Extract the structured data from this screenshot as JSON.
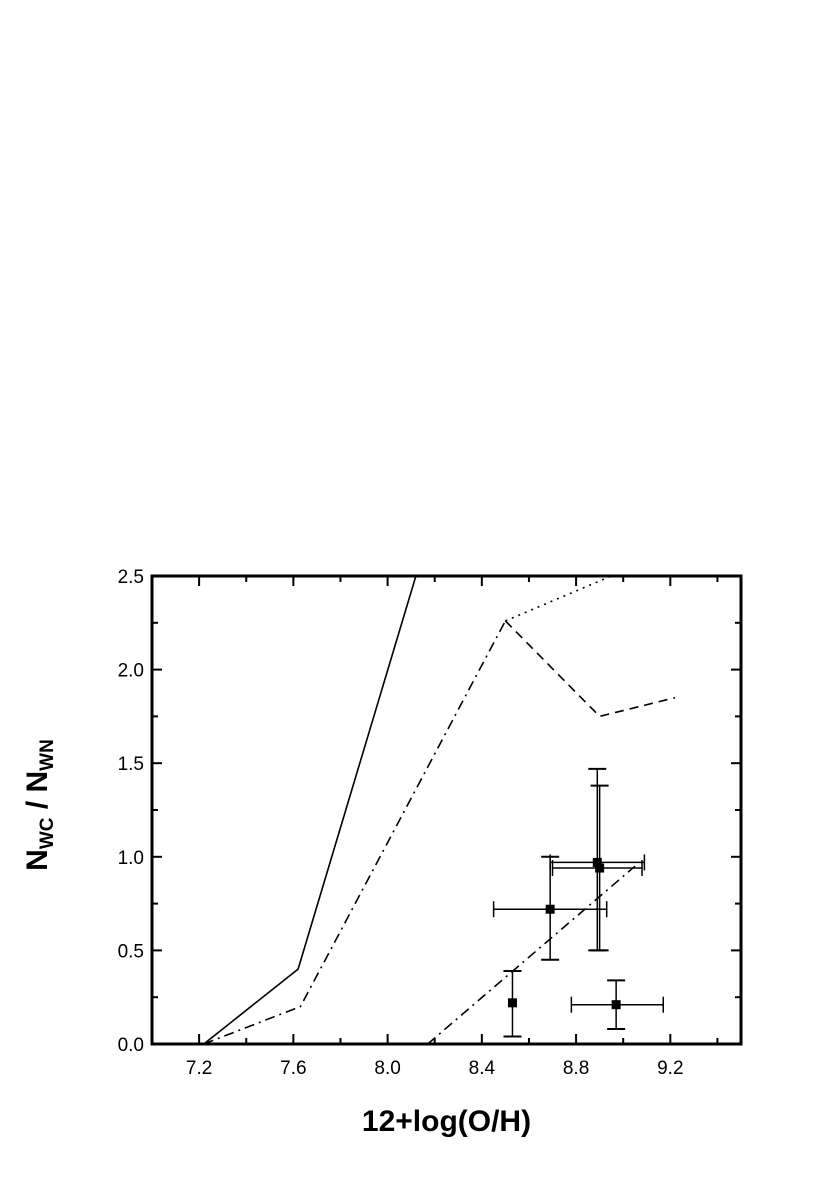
{
  "chart_data": {
    "type": "scatter",
    "title": "",
    "xlabel": "12+log(O/H)",
    "ylabel_parts": [
      "N",
      "WC",
      " / N",
      "WN"
    ],
    "xlim": [
      7.0,
      9.5
    ],
    "ylim": [
      0.0,
      2.5
    ],
    "x_ticks": [
      "7.2",
      "7.6",
      "8.0",
      "8.4",
      "8.8",
      "9.2"
    ],
    "x_tick_values": [
      7.2,
      7.6,
      8.0,
      8.4,
      8.8,
      9.2
    ],
    "y_ticks": [
      "0.0",
      "0.5",
      "1.0",
      "1.5",
      "2.0",
      "2.5"
    ],
    "y_tick_values": [
      0.0,
      0.5,
      1.0,
      1.5,
      2.0,
      2.5
    ],
    "x_minor_step": 0.2,
    "y_minor_step": 0.25,
    "grid": false,
    "lines": [
      {
        "style": "solid",
        "points": [
          [
            7.22,
            0.0
          ],
          [
            7.62,
            0.4
          ],
          [
            8.12,
            2.5
          ]
        ]
      },
      {
        "style": "dashdot",
        "points": [
          [
            7.22,
            0.0
          ],
          [
            7.63,
            0.2
          ],
          [
            8.5,
            2.26
          ]
        ]
      },
      {
        "style": "dotted",
        "points": [
          [
            8.5,
            2.26
          ],
          [
            8.95,
            2.5
          ]
        ]
      },
      {
        "style": "dashed",
        "points": [
          [
            8.5,
            2.26
          ],
          [
            8.9,
            1.75
          ],
          [
            9.22,
            1.85
          ]
        ]
      },
      {
        "style": "dashdot",
        "points": [
          [
            8.17,
            0.0
          ],
          [
            9.05,
            0.95
          ]
        ]
      }
    ],
    "points": [
      {
        "x": 8.53,
        "y": 0.22,
        "xerr": [
          0.0,
          0.0
        ],
        "yerr": [
          0.18,
          0.17
        ]
      },
      {
        "x": 8.69,
        "y": 0.72,
        "xerr": [
          0.24,
          0.24
        ],
        "yerr": [
          0.27,
          0.28
        ]
      },
      {
        "x": 8.89,
        "y": 0.97,
        "xerr": [
          0.2,
          0.2
        ],
        "yerr": [
          0.47,
          0.5
        ]
      },
      {
        "x": 8.9,
        "y": 0.94,
        "xerr": [
          0.2,
          0.18
        ],
        "yerr": [
          0.44,
          0.44
        ]
      },
      {
        "x": 8.97,
        "y": 0.21,
        "xerr": [
          0.19,
          0.2
        ],
        "yerr": [
          0.13,
          0.13
        ]
      }
    ]
  }
}
